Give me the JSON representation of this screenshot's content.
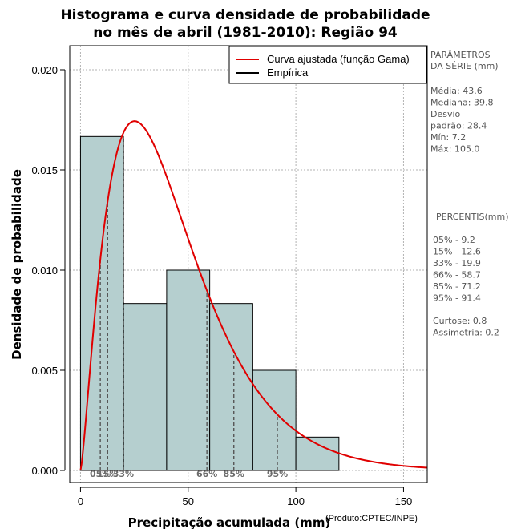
{
  "chart_data": {
    "type": "bar",
    "title_line1": "Histograma e curva densidade de probabilidade",
    "title_line2": "no mês de abril (1981-2010): Região 94",
    "xlabel": "Precipitação acumulada (mm)",
    "ylabel": "Densidade de probabilidade",
    "credit": "(Produto:CPTEC/INPE)",
    "xlim": [
      -5,
      161
    ],
    "ylim": [
      -0.0006,
      0.0212
    ],
    "xticks": [
      0,
      50,
      100,
      150
    ],
    "yticks": [
      0.0,
      0.005,
      0.01,
      0.015,
      0.02
    ],
    "ytick_labels": [
      "0.000",
      "0.005",
      "0.010",
      "0.015",
      "0.020"
    ],
    "grid": true,
    "bins": [
      {
        "x0": 0,
        "x1": 20,
        "density": 0.016667
      },
      {
        "x0": 20,
        "x1": 40,
        "density": 0.008333
      },
      {
        "x0": 40,
        "x1": 60,
        "density": 0.01
      },
      {
        "x0": 60,
        "x1": 80,
        "density": 0.008333
      },
      {
        "x0": 80,
        "x1": 100,
        "density": 0.005
      },
      {
        "x0": 100,
        "x1": 120,
        "density": 0.001667
      }
    ],
    "bar_color": "#b5cfcf",
    "series": [
      {
        "name": "Curva ajustada (função Gama)",
        "color": "#e00000",
        "dist": "gamma",
        "shape": 2.36,
        "mean": 43.6,
        "x_range": [
          0,
          161
        ]
      },
      {
        "name": "Empírica",
        "color": "#000000"
      }
    ],
    "legend_position": "top-right",
    "percentiles": [
      {
        "label": "05%",
        "value": 9.2
      },
      {
        "label": "15%",
        "value": 12.6
      },
      {
        "label": "33%",
        "value": 19.9
      },
      {
        "label": "66%",
        "value": 58.7
      },
      {
        "label": "85%",
        "value": 71.2
      },
      {
        "label": "95%",
        "value": 91.4
      }
    ]
  },
  "side_panel": {
    "params_title_1": "PARÂMETROS",
    "params_title_2": " DA SÉRIE (mm)",
    "stats": [
      "Média:  43.6",
      "Mediana:  39.8",
      "Desvio",
      "padrão:  28.4",
      "Mín:  7.2",
      "Máx:  105.0"
    ],
    "percentis_title": "PERCENTIS(mm)",
    "percentis": [
      "05% -   9.2",
      "15% -   12.6",
      "33% -   19.9",
      "66% -   58.7",
      "85% -   71.2",
      "95% -   91.4"
    ],
    "shape_stats": [
      "Curtose:  0.8",
      "Assimetria:  0.2"
    ]
  }
}
